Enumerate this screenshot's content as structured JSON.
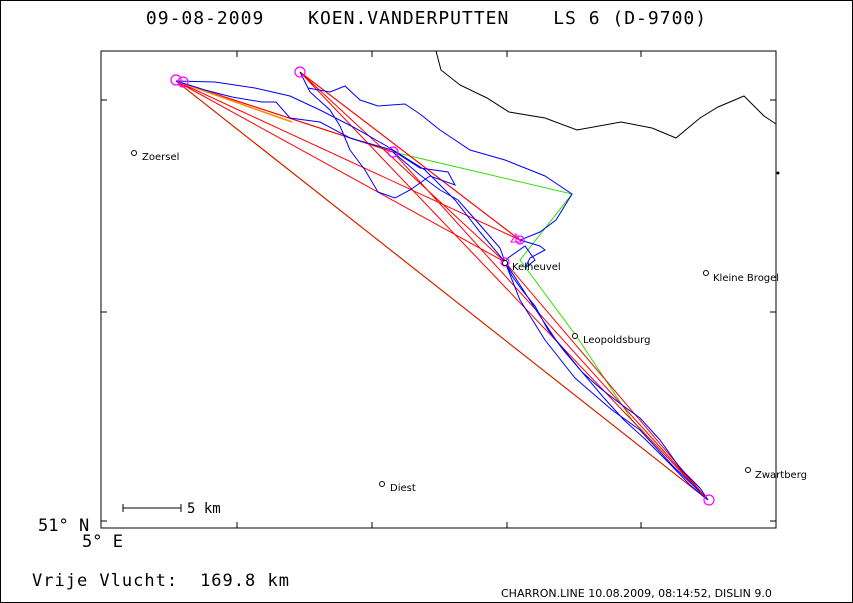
{
  "header": {
    "date": "09-08-2009",
    "pilot": "KOEN.VANDERPUTTEN",
    "glider": "LS 6 (D-9700)"
  },
  "axes": {
    "lat_label": "51° N",
    "lon_label": "5° E"
  },
  "scale_bar": {
    "label": "5 km"
  },
  "summary": {
    "label": "Vrije Vlucht:",
    "distance": "169.8 km"
  },
  "footer": "CHARRON.LINE 10.08.2009, 08:14:52, DISLIN 9.0",
  "colors": {
    "track": "#0000ff",
    "task_leg": "#ff0000",
    "optimised_leg": "#00cc00",
    "turnpoint": "#ff00ff",
    "border": "#000000"
  },
  "towns": [
    {
      "name": "Zoersel"
    },
    {
      "name": "Kelheuvel"
    },
    {
      "name": "Kleine Brogel"
    },
    {
      "name": "Leopoldsburg"
    },
    {
      "name": "Zwartberg"
    },
    {
      "name": "Diest"
    }
  ]
}
